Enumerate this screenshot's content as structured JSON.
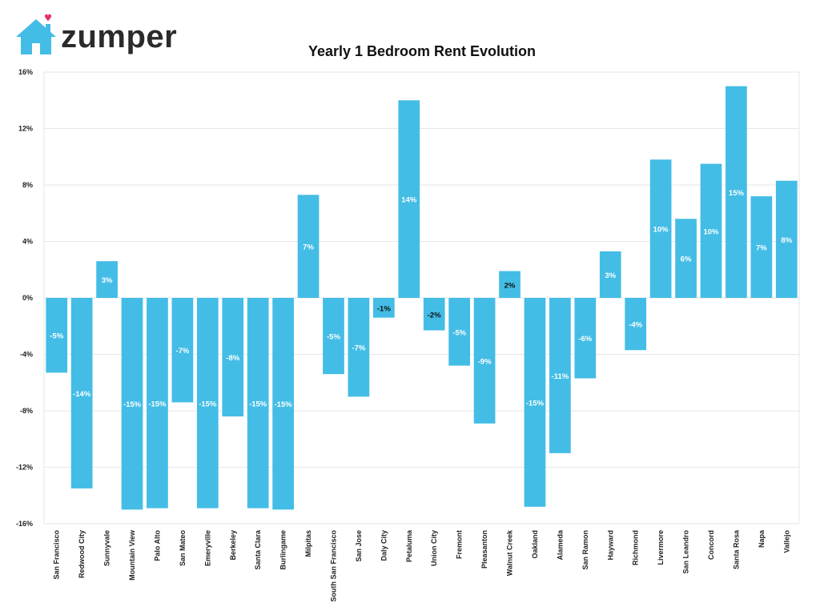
{
  "brand": {
    "name": "zumper"
  },
  "colors": {
    "bar": "#43bde6",
    "grid": "#e6e6e6",
    "heart": "#e8306a",
    "logo": "#43bde6"
  },
  "chart_data": {
    "type": "bar",
    "title": "Yearly 1 Bedroom Rent Evolution",
    "ylim": [
      -16,
      16
    ],
    "yticks": [
      16,
      12,
      8,
      4,
      0,
      -4,
      -8,
      -12,
      -16
    ],
    "ytick_labels": [
      "16%",
      "12%",
      "8%",
      "4%",
      "0%",
      "-4%",
      "-8%",
      "-12%",
      "-16%"
    ],
    "grid": true,
    "categories": [
      "San Francisco",
      "Redwood City",
      "Sunnyvale",
      "Mountain View",
      "Palo Alto",
      "San Mateo",
      "Emeryville",
      "Berkeley",
      "Santa Clara",
      "Burlingame",
      "Milpitas",
      "South San Francisco",
      "San Jose",
      "Daly City",
      "Petaluma",
      "Union City",
      "Fremont",
      "Pleasanton",
      "Walnut Creek",
      "Oakland",
      "Alameda",
      "San Ramon",
      "Hayward",
      "Richmond",
      "Livermore",
      "San Leandro",
      "Concord",
      "Santa Rosa",
      "Napa",
      "Vallejo"
    ],
    "values": [
      -5.3,
      -13.5,
      2.6,
      -15.0,
      -14.9,
      -7.4,
      -14.9,
      -8.4,
      -14.9,
      -15.0,
      7.3,
      -5.4,
      -7.0,
      -1.4,
      14.0,
      -2.3,
      -4.8,
      -8.9,
      1.9,
      -14.8,
      -11.0,
      -5.7,
      3.3,
      -3.7,
      9.8,
      5.6,
      9.5,
      15.0,
      7.2,
      8.3
    ],
    "data_labels": [
      "-5%",
      "-14%",
      "3%",
      "-15%",
      "-15%",
      "-7%",
      "-15%",
      "-8%",
      "-15%",
      "-15%",
      "7%",
      "-5%",
      "-7%",
      "-1%",
      "14%",
      "-2%",
      "-5%",
      "-9%",
      "2%",
      "-15%",
      "-11%",
      "-6%",
      "3%",
      "-4%",
      "10%",
      "6%",
      "10%",
      "15%",
      "7%",
      "8%"
    ]
  }
}
